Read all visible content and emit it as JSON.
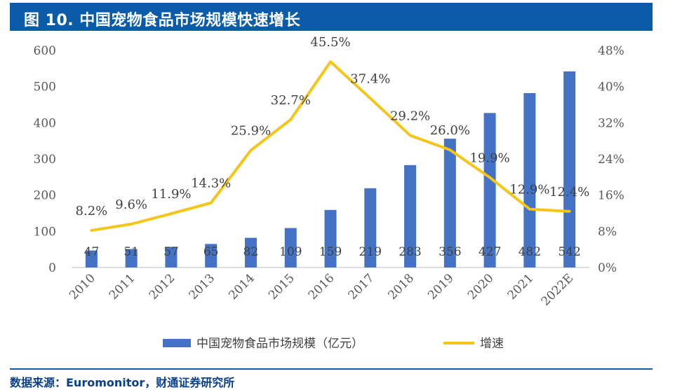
{
  "header": {
    "title": "图 10. 中国宠物食品市场规模快速增长"
  },
  "footer": {
    "source": "数据来源：Euromonitor，财通证券研究所"
  },
  "colors": {
    "title_bg": "#0a5ba8",
    "bar": "#4472c4",
    "line": "#f5c518"
  },
  "chart_data": {
    "type": "bar+line",
    "categories": [
      "2010",
      "2011",
      "2012",
      "2013",
      "2014",
      "2015",
      "2016",
      "2017",
      "2018",
      "2019",
      "2020",
      "2021",
      "2022E"
    ],
    "series": [
      {
        "name": "中国宠物食品市场规模（亿元）",
        "type": "bar",
        "axis": "left",
        "values": [
          47,
          51,
          57,
          65,
          82,
          109,
          159,
          219,
          283,
          356,
          427,
          482,
          542
        ],
        "labels": [
          "47",
          "51",
          "57",
          "65",
          "82",
          "109",
          "159",
          "219",
          "283",
          "356",
          "427",
          "482",
          "542"
        ]
      },
      {
        "name": "增速",
        "type": "line",
        "axis": "right",
        "values": [
          8.2,
          9.6,
          11.9,
          14.3,
          25.9,
          32.7,
          45.5,
          37.4,
          29.2,
          26.0,
          19.9,
          12.9,
          12.4
        ],
        "labels": [
          "8.2%",
          "9.6%",
          "11.9%",
          "14.3%",
          "25.9%",
          "32.7%",
          "45.5%",
          "37.4%",
          "29.2%",
          "26.0%",
          "19.9%",
          "12.9%",
          "12.4%"
        ]
      }
    ],
    "left_axis": {
      "min": 0,
      "max": 600,
      "ticks": [
        "0",
        "100",
        "200",
        "300",
        "400",
        "500",
        "600"
      ]
    },
    "right_axis": {
      "min": 0,
      "max": 48,
      "ticks": [
        "0%",
        "8%",
        "16%",
        "24%",
        "32%",
        "40%",
        "48%"
      ]
    },
    "legend": {
      "position": "bottom",
      "entries": [
        "中国宠物食品市场规模（亿元）",
        "增速"
      ]
    }
  }
}
